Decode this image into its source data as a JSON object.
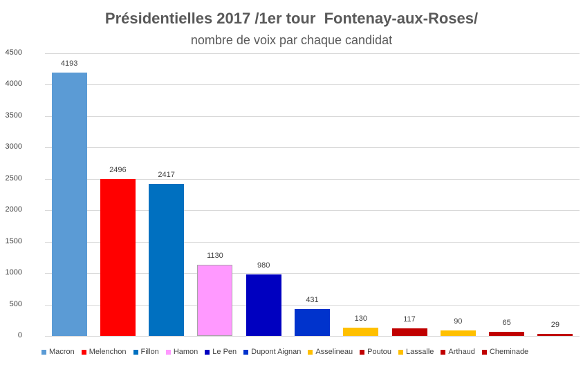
{
  "chart_data": {
    "type": "bar",
    "title": "Présidentielles 2017 /1er tour  Fontenay-aux-Roses/",
    "subtitle": "nombre de voix par chaque candidat",
    "categories": [
      "Macron",
      "Melenchon",
      "Fillon",
      "Hamon",
      "Le Pen",
      "Dupont Aignan",
      "Asselineau",
      "Poutou",
      "Lassalle",
      "Arthaud",
      "Cheminade"
    ],
    "values": [
      4193,
      2496,
      2417,
      1130,
      980,
      431,
      130,
      117,
      90,
      65,
      29
    ],
    "colors": [
      "#5b9bd5",
      "#ff0000",
      "#0070c0",
      "#ff99ff",
      "#0000c0",
      "#0033cc",
      "#ffc000",
      "#c00000",
      "#ffc000",
      "#c00000",
      "#c00000"
    ],
    "ylim": [
      0,
      4500
    ],
    "yticks": [
      0,
      500,
      1000,
      1500,
      2000,
      2500,
      3000,
      3500,
      4000,
      4500
    ],
    "grid": true,
    "legend_position": "bottom",
    "xlabel": "",
    "ylabel": ""
  }
}
